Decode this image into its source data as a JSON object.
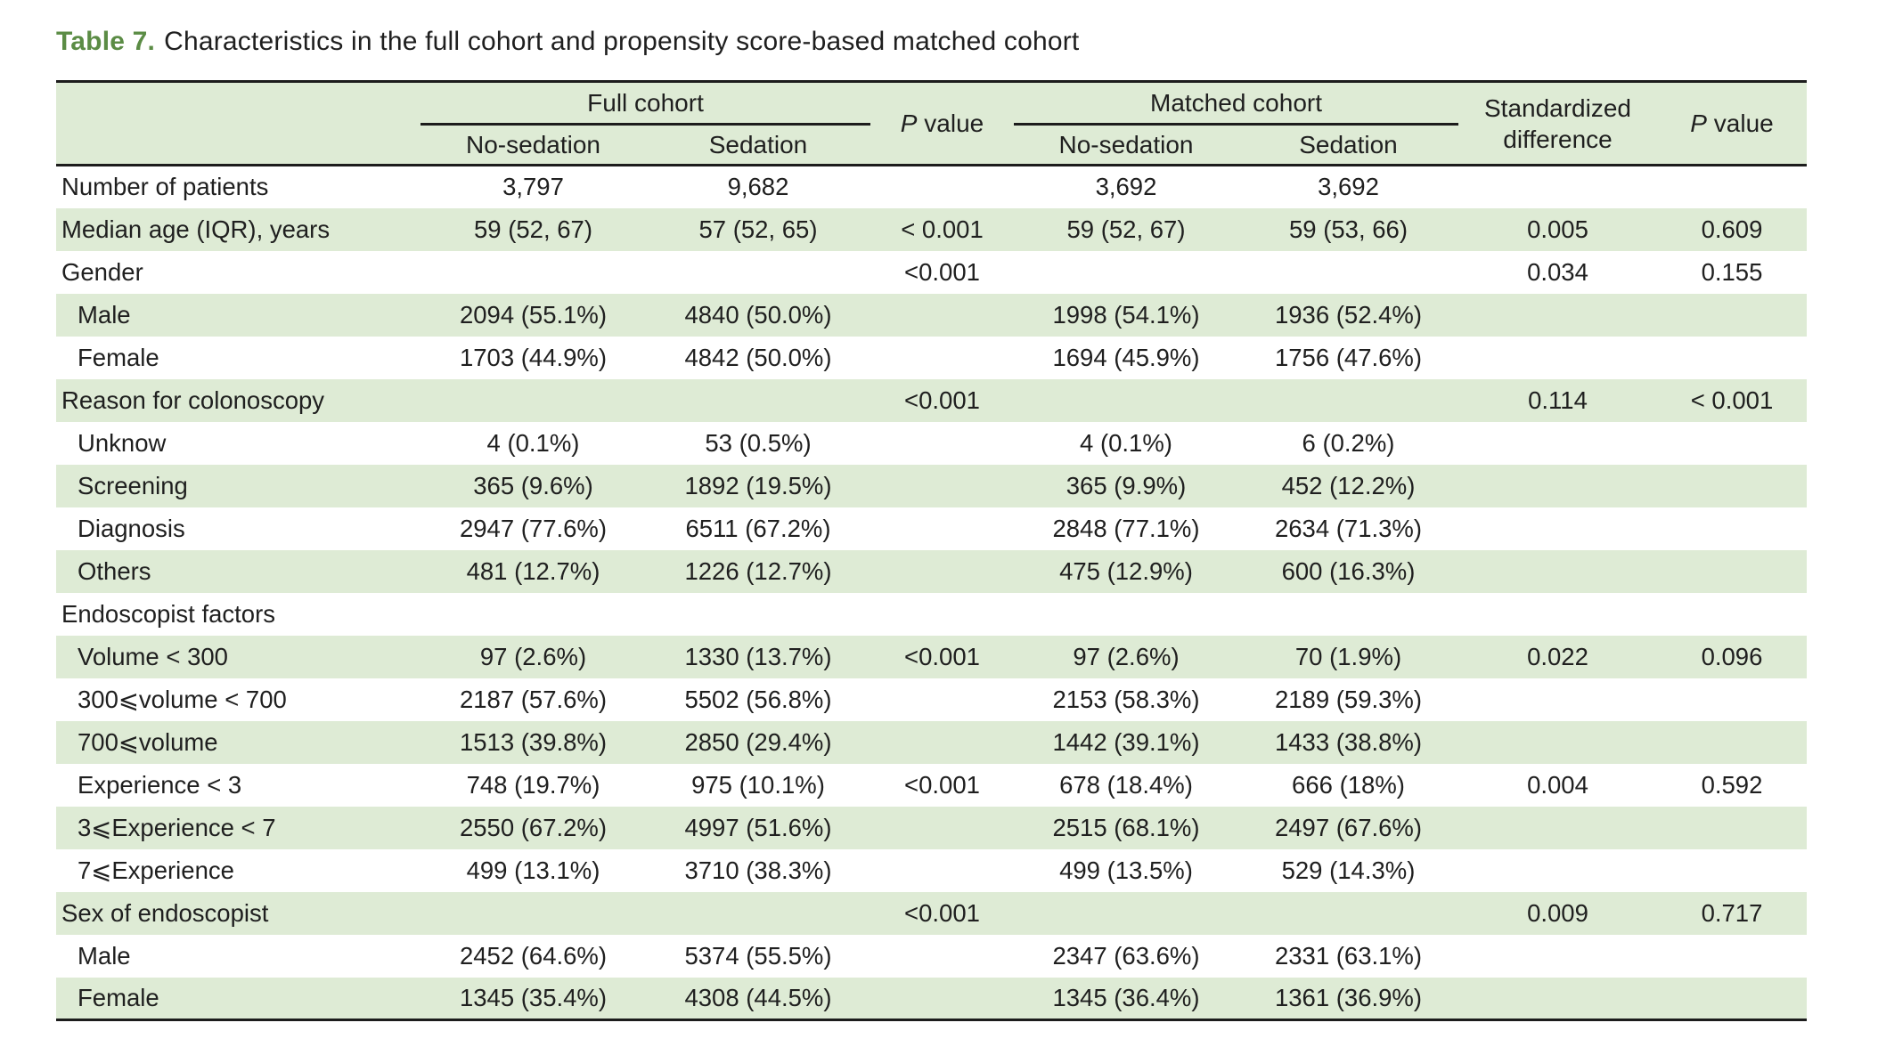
{
  "title": {
    "prefix": "Table 7.",
    "text": "Characteristics in the full cohort and propensity score-based matched cohort"
  },
  "colors": {
    "shade_green": "#deebd5",
    "title_green": "#5b8c45",
    "rule_black": "#1c1c1c",
    "text": "#1f1f1f"
  },
  "table": {
    "header": {
      "full_cohort": "Full cohort",
      "matched_cohort": "Matched cohort",
      "no_sedation": "No-sedation",
      "sedation": "Sedation",
      "p_letter": "P",
      "p_word": "value",
      "standardized_line1": "Standardized",
      "standardized_line2": "difference"
    },
    "rows": [
      {
        "label": "Number of patients",
        "indent": false,
        "shaded": false,
        "full_no_sedation": "3,797",
        "full_sedation": "9,682",
        "p_value_full": "",
        "matched_no_sedation": "3,692",
        "matched_sedation": "3,692",
        "std_difference": "",
        "p_value_matched": ""
      },
      {
        "label": "Median age (IQR), years",
        "indent": false,
        "shaded": true,
        "full_no_sedation": "59 (52, 67)",
        "full_sedation": "57 (52, 65)",
        "p_value_full": "< 0.001",
        "matched_no_sedation": "59 (52, 67)",
        "matched_sedation": "59 (53, 66)",
        "std_difference": "0.005",
        "p_value_matched": "0.609"
      },
      {
        "label": "Gender",
        "indent": false,
        "shaded": false,
        "full_no_sedation": "",
        "full_sedation": "",
        "p_value_full": "<0.001",
        "matched_no_sedation": "",
        "matched_sedation": "",
        "std_difference": "0.034",
        "p_value_matched": "0.155"
      },
      {
        "label": "Male",
        "indent": true,
        "shaded": true,
        "full_no_sedation": "2094 (55.1%)",
        "full_sedation": "4840 (50.0%)",
        "p_value_full": "",
        "matched_no_sedation": "1998 (54.1%)",
        "matched_sedation": "1936 (52.4%)",
        "std_difference": "",
        "p_value_matched": ""
      },
      {
        "label": "Female",
        "indent": true,
        "shaded": false,
        "full_no_sedation": "1703 (44.9%)",
        "full_sedation": "4842 (50.0%)",
        "p_value_full": "",
        "matched_no_sedation": "1694 (45.9%)",
        "matched_sedation": "1756 (47.6%)",
        "std_difference": "",
        "p_value_matched": ""
      },
      {
        "label": "Reason for colonoscopy",
        "indent": false,
        "shaded": true,
        "full_no_sedation": "",
        "full_sedation": "",
        "p_value_full": "<0.001",
        "matched_no_sedation": "",
        "matched_sedation": "",
        "std_difference": "0.114",
        "p_value_matched": "< 0.001"
      },
      {
        "label": "Unknow",
        "indent": true,
        "shaded": false,
        "full_no_sedation": "4 (0.1%)",
        "full_sedation": "53 (0.5%)",
        "p_value_full": "",
        "matched_no_sedation": "4 (0.1%)",
        "matched_sedation": "6 (0.2%)",
        "std_difference": "",
        "p_value_matched": ""
      },
      {
        "label": "Screening",
        "indent": true,
        "shaded": true,
        "full_no_sedation": "365 (9.6%)",
        "full_sedation": "1892 (19.5%)",
        "p_value_full": "",
        "matched_no_sedation": "365 (9.9%)",
        "matched_sedation": "452 (12.2%)",
        "std_difference": "",
        "p_value_matched": ""
      },
      {
        "label": "Diagnosis",
        "indent": true,
        "shaded": false,
        "full_no_sedation": "2947 (77.6%)",
        "full_sedation": "6511 (67.2%)",
        "p_value_full": "",
        "matched_no_sedation": "2848 (77.1%)",
        "matched_sedation": "2634 (71.3%)",
        "std_difference": "",
        "p_value_matched": ""
      },
      {
        "label": "Others",
        "indent": true,
        "shaded": true,
        "full_no_sedation": "481 (12.7%)",
        "full_sedation": "1226 (12.7%)",
        "p_value_full": "",
        "matched_no_sedation": "475 (12.9%)",
        "matched_sedation": "600 (16.3%)",
        "std_difference": "",
        "p_value_matched": ""
      },
      {
        "label": "Endoscopist factors",
        "indent": false,
        "shaded": false,
        "full_no_sedation": "",
        "full_sedation": "",
        "p_value_full": "",
        "matched_no_sedation": "",
        "matched_sedation": "",
        "std_difference": "",
        "p_value_matched": ""
      },
      {
        "label": "Volume < 300",
        "indent": true,
        "shaded": true,
        "full_no_sedation": "97 (2.6%)",
        "full_sedation": "1330 (13.7%)",
        "p_value_full": "<0.001",
        "matched_no_sedation": "97 (2.6%)",
        "matched_sedation": "70 (1.9%)",
        "std_difference": "0.022",
        "p_value_matched": "0.096"
      },
      {
        "label": "300⩽volume < 700",
        "indent": true,
        "shaded": false,
        "full_no_sedation": "2187 (57.6%)",
        "full_sedation": "5502 (56.8%)",
        "p_value_full": "",
        "matched_no_sedation": "2153 (58.3%)",
        "matched_sedation": "2189 (59.3%)",
        "std_difference": "",
        "p_value_matched": ""
      },
      {
        "label": "700⩽volume",
        "indent": true,
        "shaded": true,
        "full_no_sedation": "1513 (39.8%)",
        "full_sedation": "2850 (29.4%)",
        "p_value_full": "",
        "matched_no_sedation": "1442 (39.1%)",
        "matched_sedation": "1433 (38.8%)",
        "std_difference": "",
        "p_value_matched": ""
      },
      {
        "label": "Experience < 3",
        "indent": true,
        "shaded": false,
        "full_no_sedation": "748 (19.7%)",
        "full_sedation": "975 (10.1%)",
        "p_value_full": "<0.001",
        "matched_no_sedation": "678 (18.4%)",
        "matched_sedation": "666 (18%)",
        "std_difference": "0.004",
        "p_value_matched": "0.592"
      },
      {
        "label": "3⩽Experience < 7",
        "indent": true,
        "shaded": true,
        "full_no_sedation": "2550 (67.2%)",
        "full_sedation": "4997 (51.6%)",
        "p_value_full": "",
        "matched_no_sedation": "2515 (68.1%)",
        "matched_sedation": "2497 (67.6%)",
        "std_difference": "",
        "p_value_matched": ""
      },
      {
        "label": "7⩽Experience",
        "indent": true,
        "shaded": false,
        "full_no_sedation": "499 (13.1%)",
        "full_sedation": "3710 (38.3%)",
        "p_value_full": "",
        "matched_no_sedation": "499 (13.5%)",
        "matched_sedation": "529 (14.3%)",
        "std_difference": "",
        "p_value_matched": ""
      },
      {
        "label": "Sex of endoscopist",
        "indent": false,
        "shaded": true,
        "full_no_sedation": "",
        "full_sedation": "",
        "p_value_full": "<0.001",
        "matched_no_sedation": "",
        "matched_sedation": "",
        "std_difference": "0.009",
        "p_value_matched": "0.717"
      },
      {
        "label": "Male",
        "indent": true,
        "shaded": false,
        "full_no_sedation": "2452 (64.6%)",
        "full_sedation": "5374 (55.5%)",
        "p_value_full": "",
        "matched_no_sedation": "2347 (63.6%)",
        "matched_sedation": "2331 (63.1%)",
        "std_difference": "",
        "p_value_matched": ""
      },
      {
        "label": "Female",
        "indent": true,
        "shaded": true,
        "full_no_sedation": "1345 (35.4%)",
        "full_sedation": "4308 (44.5%)",
        "p_value_full": "",
        "matched_no_sedation": "1345 (36.4%)",
        "matched_sedation": "1361 (36.9%)",
        "std_difference": "",
        "p_value_matched": ""
      }
    ]
  }
}
